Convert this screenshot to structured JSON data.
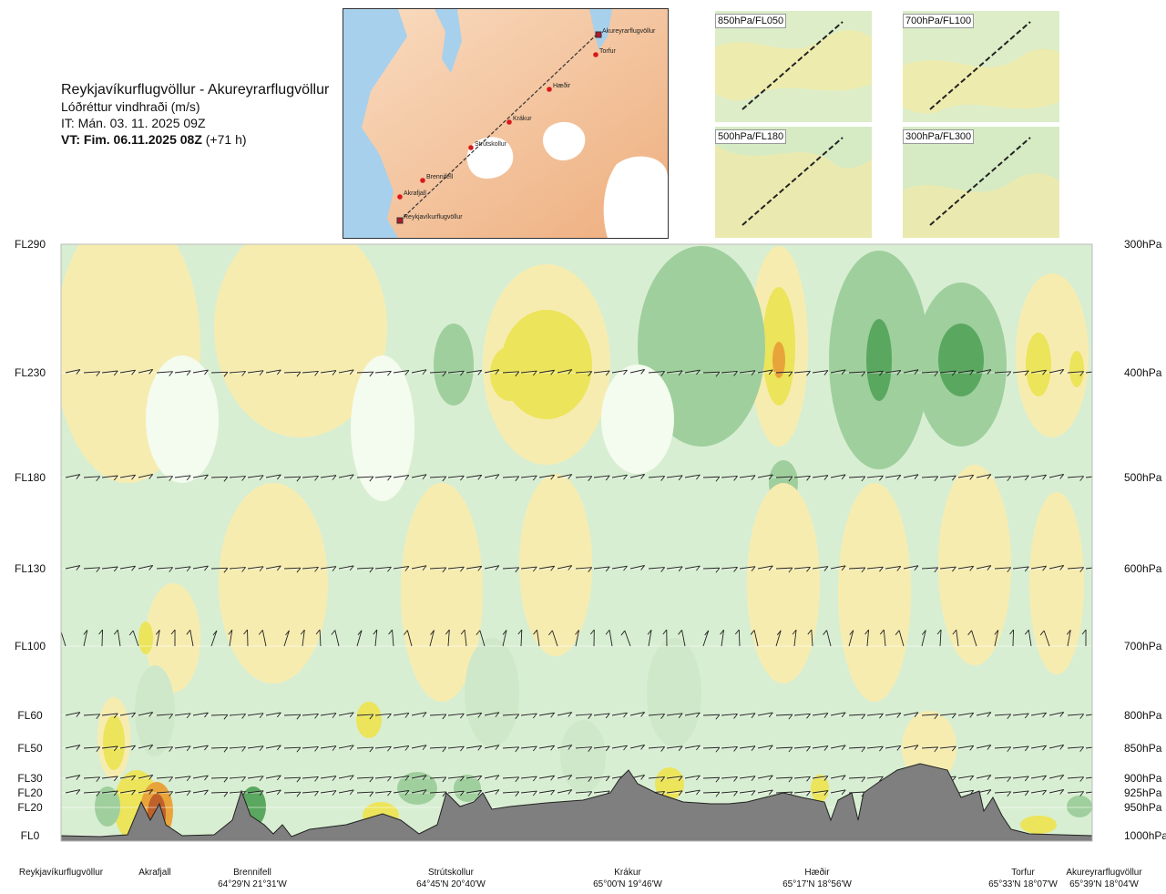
{
  "header": {
    "title": "Reykjavíkurflugvöllur - Akureyrarflugvöllur",
    "subtitle": "Lóðréttur vindhraði (m/s)",
    "issue": "IT: Mán. 03. 11. 2025 09Z",
    "valid_bold": "VT: Fim. 06.11.2025 08Z",
    "valid_rest": "(+71 h)"
  },
  "map": {
    "places": [
      "Akureyrarflugvöllur",
      "Torfur",
      "Hæðir",
      "Krákur",
      "Strútskollur",
      "Brennifell",
      "Akrafjall",
      "Reykjavíkurflugvöllur"
    ],
    "colors": {
      "land": "#f3c49c",
      "sea": "#a7d0ec",
      "glacier": "#ffffff",
      "route": "#333333",
      "waypoint": "#d7191c"
    }
  },
  "thumbnails": [
    {
      "label": "850hPa/FL050"
    },
    {
      "label": "700hPa/FL100"
    },
    {
      "label": "500hPa/FL180"
    },
    {
      "label": "300hPa/FL300"
    }
  ],
  "chart_data": {
    "type": "heatmap",
    "title": "Reykjavíkurflugvöllur - Akureyrarflugvöllur",
    "quantity": "Lóðréttur vindhraði (m/s)",
    "y_levels_left": [
      "FL290",
      "FL230",
      "FL180",
      "FL130",
      "FL100",
      "FL60",
      "FL50",
      "FL30",
      "FL20",
      "FL20",
      "FL0"
    ],
    "y_levels_right": [
      "300hPa",
      "400hPa",
      "500hPa",
      "600hPa",
      "700hPa",
      "800hPa",
      "850hPa",
      "900hPa",
      "925hPa",
      "950hPa",
      "1000hPa"
    ],
    "x_waypoints": [
      {
        "name": "Reykjavíkurflugvöllur",
        "coord": ""
      },
      {
        "name": "Akrafjall",
        "coord": ""
      },
      {
        "name": "Brennifell",
        "coord": "64°29'N 21°31'W"
      },
      {
        "name": "Strútskollur",
        "coord": "64°45'N 20°40'W"
      },
      {
        "name": "Krákur",
        "coord": "65°00'N 19°46'W"
      },
      {
        "name": "Hæðir",
        "coord": "65°17'N 18°56'W"
      },
      {
        "name": "Torfur",
        "coord": "65°33'N 18°07'W"
      },
      {
        "name": "Akureyrarflugvöllur",
        "coord": "65°39'N 18°04'W"
      }
    ],
    "colors": {
      "strong_down": "#5aa75f",
      "moderate_down": "#9fcf9d",
      "weak_down": "#cfe8c9",
      "near_zero": "#f4fbef",
      "weak_up": "#f7ecb0",
      "moderate_up": "#ece45a",
      "strong_up": "#e8a43a",
      "extreme_up": "#c0602a",
      "terrain": "#7f7f7f"
    },
    "grid": true
  }
}
